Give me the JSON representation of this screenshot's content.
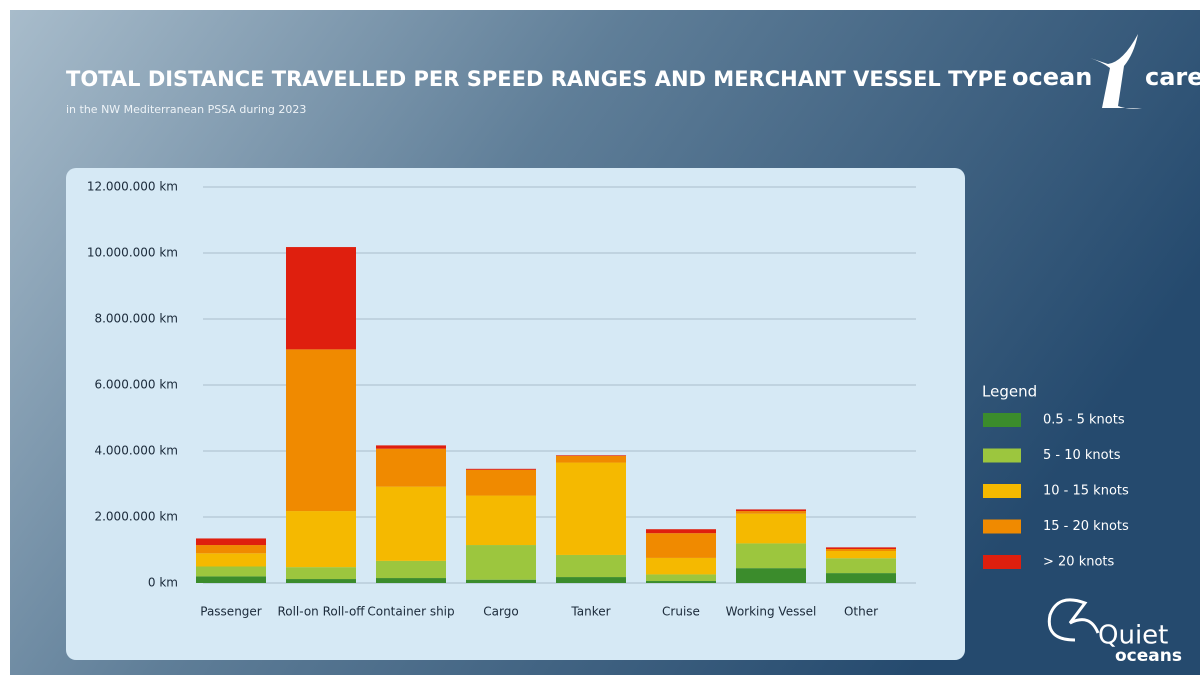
{
  "chart_data": {
    "type": "stacked_bar",
    "title": "TOTAL DISTANCE TRAVELLED PER SPEED RANGES AND MERCHANT VESSEL TYPE",
    "subtitle": "in the NW Mediterranean PSSA during 2023",
    "legend_title": "Legend",
    "logos": [
      "ocean",
      "care",
      "Quiet",
      "oceans"
    ],
    "categories": [
      "Passenger",
      "Roll-on Roll-off",
      "Container ship",
      "Cargo",
      "Tanker",
      "Cruise",
      "Working Vessel",
      "Other"
    ],
    "series": [
      {
        "name": "0.5 - 5 knots",
        "color": "#3b8c2c",
        "values": [
          200000,
          120000,
          150000,
          100000,
          180000,
          60000,
          450000,
          300000
        ]
      },
      {
        "name": "5 - 10 knots",
        "color": "#9cc63e",
        "values": [
          300000,
          360000,
          520000,
          1050000,
          670000,
          200000,
          750000,
          450000
        ]
      },
      {
        "name": "10 - 15 knots",
        "color": "#f5b900",
        "values": [
          400000,
          1700000,
          2250000,
          1500000,
          2800000,
          500000,
          900000,
          220000
        ]
      },
      {
        "name": "15 - 20 knots",
        "color": "#f08a00",
        "values": [
          250000,
          4900000,
          1150000,
          780000,
          200000,
          750000,
          80000,
          60000
        ]
      },
      {
        "name": "> 20 knots",
        "color": "#df1f0e",
        "values": [
          200000,
          3100000,
          100000,
          30000,
          20000,
          120000,
          50000,
          50000
        ]
      }
    ],
    "ylim": [
      0,
      12000000
    ],
    "yticks": [
      {
        "value": 0,
        "label": "0 km"
      },
      {
        "value": 2000000,
        "label": "2.000.000 km"
      },
      {
        "value": 4000000,
        "label": "4.000.000 km"
      },
      {
        "value": 6000000,
        "label": "6.000.000 km"
      },
      {
        "value": 8000000,
        "label": "8.000.000 km"
      },
      {
        "value": 10000000,
        "label": "10.000.000 km"
      },
      {
        "value": 12000000,
        "label": "12.000.000 km"
      }
    ],
    "grid": true
  }
}
